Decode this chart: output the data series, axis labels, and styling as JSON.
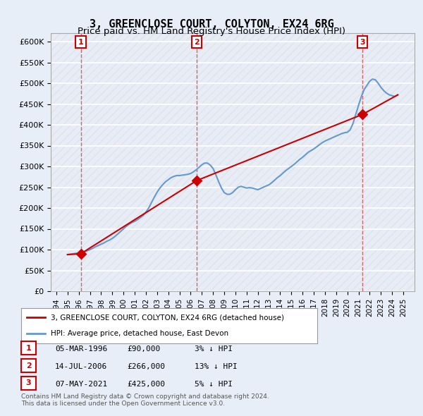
{
  "title": "3, GREENCLOSE COURT, COLYTON, EX24 6RG",
  "subtitle": "Price paid vs. HM Land Registry's House Price Index (HPI)",
  "ylabel": "",
  "ylim": [
    0,
    620000
  ],
  "yticks": [
    0,
    50000,
    100000,
    150000,
    200000,
    250000,
    300000,
    350000,
    400000,
    450000,
    500000,
    550000,
    600000
  ],
  "ytick_labels": [
    "£0",
    "£50K",
    "£100K",
    "£150K",
    "£200K",
    "£250K",
    "£300K",
    "£350K",
    "£400K",
    "£450K",
    "£500K",
    "£550K",
    "£600K"
  ],
  "xlim_start": 1993.5,
  "xlim_end": 2026.0,
  "bg_color": "#e8eef8",
  "plot_bg": "#f0f4ff",
  "grid_color": "#ffffff",
  "hatch_color": "#d0d8e8",
  "transactions": [
    {
      "date": 1996.18,
      "price": 90000,
      "label": "1"
    },
    {
      "date": 2006.54,
      "price": 266000,
      "label": "2"
    },
    {
      "date": 2021.35,
      "price": 425000,
      "label": "3"
    }
  ],
  "transaction_color": "#cc0000",
  "hpi_line_color": "#6699cc",
  "price_line_color": "#cc0000",
  "hpi_data_x": [
    1995.0,
    1995.25,
    1995.5,
    1995.75,
    1996.0,
    1996.25,
    1996.5,
    1996.75,
    1997.0,
    1997.25,
    1997.5,
    1997.75,
    1998.0,
    1998.25,
    1998.5,
    1998.75,
    1999.0,
    1999.25,
    1999.5,
    1999.75,
    2000.0,
    2000.25,
    2000.5,
    2000.75,
    2001.0,
    2001.25,
    2001.5,
    2001.75,
    2002.0,
    2002.25,
    2002.5,
    2002.75,
    2003.0,
    2003.25,
    2003.5,
    2003.75,
    2004.0,
    2004.25,
    2004.5,
    2004.75,
    2005.0,
    2005.25,
    2005.5,
    2005.75,
    2006.0,
    2006.25,
    2006.5,
    2006.75,
    2007.0,
    2007.25,
    2007.5,
    2007.75,
    2008.0,
    2008.25,
    2008.5,
    2008.75,
    2009.0,
    2009.25,
    2009.5,
    2009.75,
    2010.0,
    2010.25,
    2010.5,
    2010.75,
    2011.0,
    2011.25,
    2011.5,
    2011.75,
    2012.0,
    2012.25,
    2012.5,
    2012.75,
    2013.0,
    2013.25,
    2013.5,
    2013.75,
    2014.0,
    2014.25,
    2014.5,
    2014.75,
    2015.0,
    2015.25,
    2015.5,
    2015.75,
    2016.0,
    2016.25,
    2016.5,
    2016.75,
    2017.0,
    2017.25,
    2017.5,
    2017.75,
    2018.0,
    2018.25,
    2018.5,
    2018.75,
    2019.0,
    2019.25,
    2019.5,
    2019.75,
    2020.0,
    2020.25,
    2020.5,
    2020.75,
    2021.0,
    2021.25,
    2021.5,
    2021.75,
    2022.0,
    2022.25,
    2022.5,
    2022.75,
    2023.0,
    2023.25,
    2023.5,
    2023.75,
    2024.0,
    2024.25,
    2024.5
  ],
  "hpi_data_y": [
    88000,
    89000,
    90000,
    91000,
    92000,
    93500,
    95000,
    97000,
    100000,
    103000,
    107000,
    110000,
    113000,
    116000,
    120000,
    123000,
    127000,
    132000,
    138000,
    144000,
    150000,
    156000,
    161000,
    165000,
    168000,
    172000,
    177000,
    182000,
    190000,
    200000,
    213000,
    226000,
    238000,
    248000,
    256000,
    263000,
    268000,
    273000,
    276000,
    278000,
    278000,
    279000,
    280000,
    281000,
    283000,
    287000,
    292000,
    298000,
    304000,
    308000,
    308000,
    303000,
    295000,
    280000,
    263000,
    248000,
    237000,
    233000,
    233000,
    237000,
    244000,
    250000,
    252000,
    250000,
    248000,
    249000,
    248000,
    246000,
    244000,
    247000,
    250000,
    253000,
    256000,
    261000,
    267000,
    273000,
    278000,
    284000,
    290000,
    295000,
    300000,
    305000,
    311000,
    317000,
    322000,
    328000,
    334000,
    338000,
    342000,
    347000,
    352000,
    357000,
    361000,
    364000,
    367000,
    370000,
    373000,
    376000,
    379000,
    381000,
    382000,
    388000,
    403000,
    425000,
    447000,
    468000,
    485000,
    495000,
    505000,
    510000,
    508000,
    500000,
    490000,
    482000,
    476000,
    472000,
    470000,
    468000,
    472000
  ],
  "price_data_x": [
    1995.0,
    1996.18,
    2006.54,
    2021.35,
    2024.5
  ],
  "price_data_y": [
    88000,
    90000,
    266000,
    425000,
    472000
  ],
  "legend_line1": "3, GREENCLOSE COURT, COLYTON, EX24 6RG (detached house)",
  "legend_line2": "HPI: Average price, detached house, East Devon",
  "table_rows": [
    {
      "num": "1",
      "date": "05-MAR-1996",
      "price": "£90,000",
      "hpi": "3% ↓ HPI"
    },
    {
      "num": "2",
      "date": "14-JUL-2006",
      "price": "£266,000",
      "hpi": "13% ↓ HPI"
    },
    {
      "num": "3",
      "date": "07-MAY-2021",
      "price": "£425,000",
      "hpi": "5% ↓ HPI"
    }
  ],
  "footer": "Contains HM Land Registry data © Crown copyright and database right 2024.\nThis data is licensed under the Open Government Licence v3.0.",
  "dashed_line_color": "#cc4444",
  "marker_box_color": "#cc0000",
  "title_fontsize": 11,
  "subtitle_fontsize": 9.5
}
